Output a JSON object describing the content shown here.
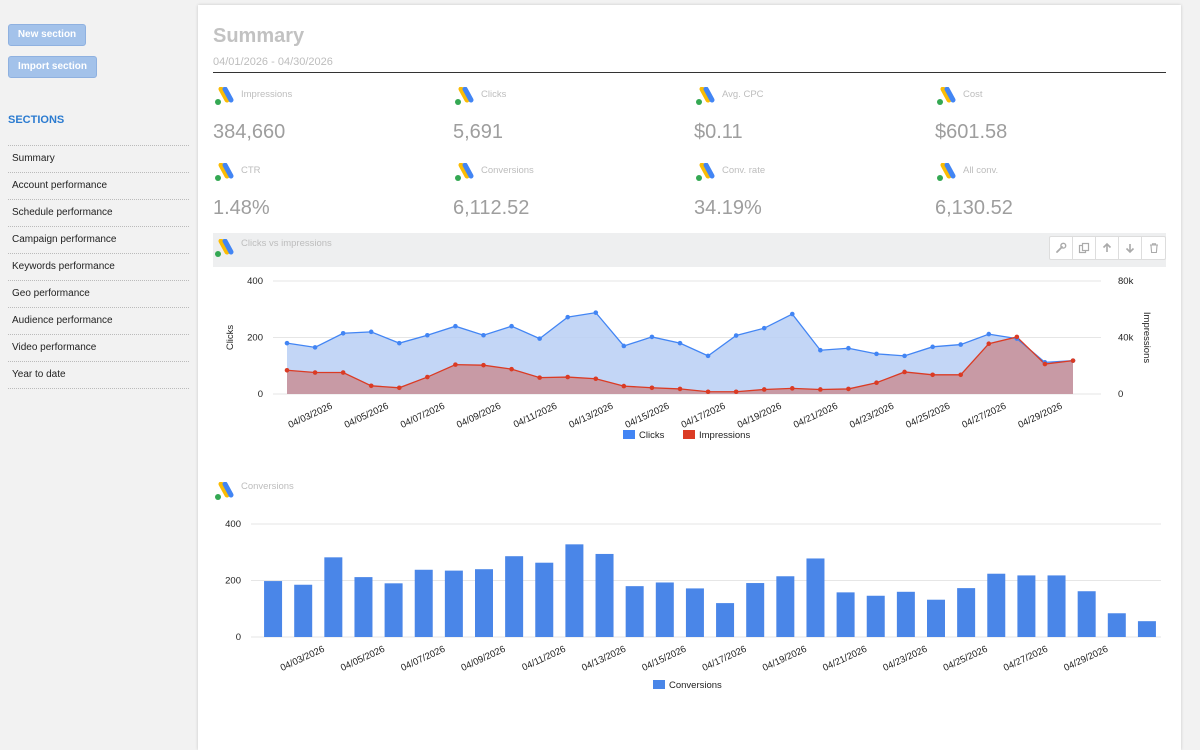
{
  "sidebar": {
    "new_section_label": "New section",
    "import_section_label": "Import section",
    "sections_title": "SECTIONS",
    "items": [
      {
        "label": "Summary"
      },
      {
        "label": "Account performance"
      },
      {
        "label": "Schedule performance"
      },
      {
        "label": "Campaign performance"
      },
      {
        "label": "Keywords performance"
      },
      {
        "label": "Geo performance"
      },
      {
        "label": "Audience performance"
      },
      {
        "label": "Video performance"
      },
      {
        "label": "Year to date"
      }
    ]
  },
  "report": {
    "title": "Summary",
    "date_range": "04/01/2026 - 04/30/2026",
    "kpis": [
      {
        "label": "Impressions",
        "value": "384,660"
      },
      {
        "label": "Clicks",
        "value": "5,691"
      },
      {
        "label": "Avg. CPC",
        "value": "$0.11"
      },
      {
        "label": "Cost",
        "value": "$601.58"
      },
      {
        "label": "CTR",
        "value": "1.48%"
      },
      {
        "label": "Conversions",
        "value": "6,112.52"
      },
      {
        "label": "Conv. rate",
        "value": "34.19%"
      },
      {
        "label": "All conv.",
        "value": "6,130.52"
      }
    ],
    "chart1_title": "Clicks vs impressions",
    "chart2_title": "Conversions",
    "logo_icon": "google-ads-logo-icon",
    "toolbar_icons": [
      "wrench-icon",
      "copy-icon",
      "arrow-up-icon",
      "arrow-down-icon",
      "trash-icon"
    ]
  },
  "colors": {
    "clicks": "#4285f4",
    "clicks_fill": "#b8cff5",
    "impressions": "#db3b24",
    "impressions_fill": "#c98f96",
    "conversions_bar": "#4a86e8"
  },
  "chart_data": [
    {
      "type": "area",
      "title": "Clicks vs impressions",
      "x": [
        "04/02/2026",
        "04/03/2026",
        "04/04/2026",
        "04/05/2026",
        "04/06/2026",
        "04/07/2026",
        "04/08/2026",
        "04/09/2026",
        "04/10/2026",
        "04/11/2026",
        "04/12/2026",
        "04/13/2026",
        "04/14/2026",
        "04/15/2026",
        "04/16/2026",
        "04/17/2026",
        "04/18/2026",
        "04/19/2026",
        "04/20/2026",
        "04/21/2026",
        "04/22/2026",
        "04/23/2026",
        "04/24/2026",
        "04/25/2026",
        "04/26/2026",
        "04/27/2026",
        "04/28/2026",
        "04/29/2026",
        "04/30/2026"
      ],
      "x_tick_labels": [
        "04/03/2026",
        "04/05/2026",
        "04/07/2026",
        "04/09/2026",
        "04/11/2026",
        "04/13/2026",
        "04/15/2026",
        "04/17/2026",
        "04/19/2026",
        "04/21/2026",
        "04/23/2026",
        "04/25/2026",
        "04/27/2026",
        "04/29/2026"
      ],
      "series": [
        {
          "name": "Clicks",
          "axis": "left",
          "values": [
            180,
            165,
            215,
            220,
            180,
            208,
            240,
            208,
            240,
            196,
            272,
            288,
            170,
            202,
            180,
            135,
            207,
            233,
            283,
            155,
            162,
            142,
            135,
            167,
            175,
            212,
            196,
            112,
            118
          ]
        },
        {
          "name": "Impressions",
          "axis": "right",
          "values": [
            16800,
            15200,
            15200,
            5800,
            4400,
            12000,
            20800,
            20400,
            17600,
            11600,
            12000,
            10800,
            5600,
            4400,
            3600,
            1600,
            1600,
            3200,
            4000,
            3200,
            3600,
            8000,
            15600,
            13600,
            13600,
            35600,
            40400,
            21200,
            23600
          ]
        }
      ],
      "y_left": {
        "label": "Clicks",
        "ticks": [
          "0",
          "200",
          "400"
        ],
        "range": [
          0,
          400
        ]
      },
      "y_right": {
        "label": "Impressions",
        "ticks": [
          "0",
          "40k",
          "80k"
        ],
        "range": [
          0,
          80000
        ]
      },
      "legend": [
        "Clicks",
        "Impressions"
      ],
      "legend_position": "bottom"
    },
    {
      "type": "bar",
      "title": "Conversions",
      "x": [
        "04/02/2026",
        "04/03/2026",
        "04/04/2026",
        "04/05/2026",
        "04/06/2026",
        "04/07/2026",
        "04/08/2026",
        "04/09/2026",
        "04/10/2026",
        "04/11/2026",
        "04/12/2026",
        "04/13/2026",
        "04/14/2026",
        "04/15/2026",
        "04/16/2026",
        "04/17/2026",
        "04/18/2026",
        "04/19/2026",
        "04/20/2026",
        "04/21/2026",
        "04/22/2026",
        "04/23/2026",
        "04/24/2026",
        "04/25/2026",
        "04/26/2026",
        "04/27/2026",
        "04/28/2026",
        "04/29/2026",
        "04/30/2026",
        "04/30/2026 "
      ],
      "x_tick_labels": [
        "04/03/2026",
        "04/05/2026",
        "04/07/2026",
        "04/09/2026",
        "04/11/2026",
        "04/13/2026",
        "04/15/2026",
        "04/17/2026",
        "04/19/2026",
        "04/21/2026",
        "04/23/2026",
        "04/25/2026",
        "04/27/2026",
        "04/29/2026"
      ],
      "series": [
        {
          "name": "Conversions",
          "values": [
            198,
            185,
            282,
            212,
            190,
            238,
            235,
            240,
            286,
            263,
            328,
            294,
            180,
            193,
            172,
            120,
            191,
            215,
            278,
            158,
            146,
            160,
            132,
            173,
            224,
            218,
            218,
            162,
            84,
            56
          ]
        }
      ],
      "y": {
        "ticks": [
          "0",
          "200",
          "400"
        ],
        "range": [
          0,
          400
        ]
      },
      "legend": [
        "Conversions"
      ],
      "legend_position": "bottom"
    }
  ]
}
